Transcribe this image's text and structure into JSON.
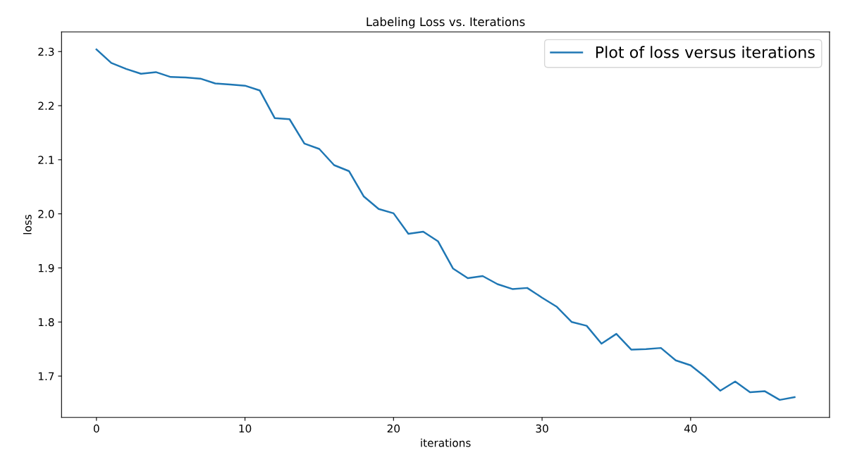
{
  "chart_data": {
    "type": "line",
    "title": "Labeling Loss vs. Iterations",
    "xlabel": "iterations",
    "ylabel": "loss",
    "x": [
      0,
      1,
      2,
      3,
      4,
      5,
      6,
      7,
      8,
      9,
      10,
      11,
      12,
      13,
      14,
      15,
      16,
      17,
      18,
      19,
      20,
      21,
      22,
      23,
      24,
      25,
      26,
      27,
      28,
      29,
      30,
      31,
      32,
      33,
      34,
      35,
      36,
      37,
      38,
      39,
      40,
      41,
      42,
      43,
      44,
      45,
      46,
      47
    ],
    "series": [
      {
        "name": "Plot of loss versus iterations",
        "color": "#1f77b4",
        "values": [
          2.304,
          2.279,
          2.268,
          2.259,
          2.262,
          2.253,
          2.252,
          2.25,
          2.241,
          2.239,
          2.237,
          2.228,
          2.177,
          2.175,
          2.13,
          2.12,
          2.09,
          2.079,
          2.032,
          2.009,
          2.001,
          1.963,
          1.967,
          1.949,
          1.899,
          1.881,
          1.885,
          1.87,
          1.861,
          1.863,
          1.845,
          1.828,
          1.8,
          1.793,
          1.76,
          1.778,
          1.749,
          1.75,
          1.752,
          1.729,
          1.72,
          1.698,
          1.673,
          1.69,
          1.67,
          1.672,
          1.656,
          1.661
        ]
      }
    ],
    "xlim": [
      -2.35,
      49.35
    ],
    "ylim": [
      1.6236,
      2.3364
    ],
    "xticks": [
      0,
      10,
      20,
      30,
      40
    ],
    "yticks": [
      1.7,
      1.8,
      1.9,
      {
        "value": 2,
        "label": "2.0"
      },
      2.1,
      2.2,
      2.3
    ],
    "legend": "top right",
    "grid": false,
    "marker": "none",
    "line_style": "solid"
  }
}
